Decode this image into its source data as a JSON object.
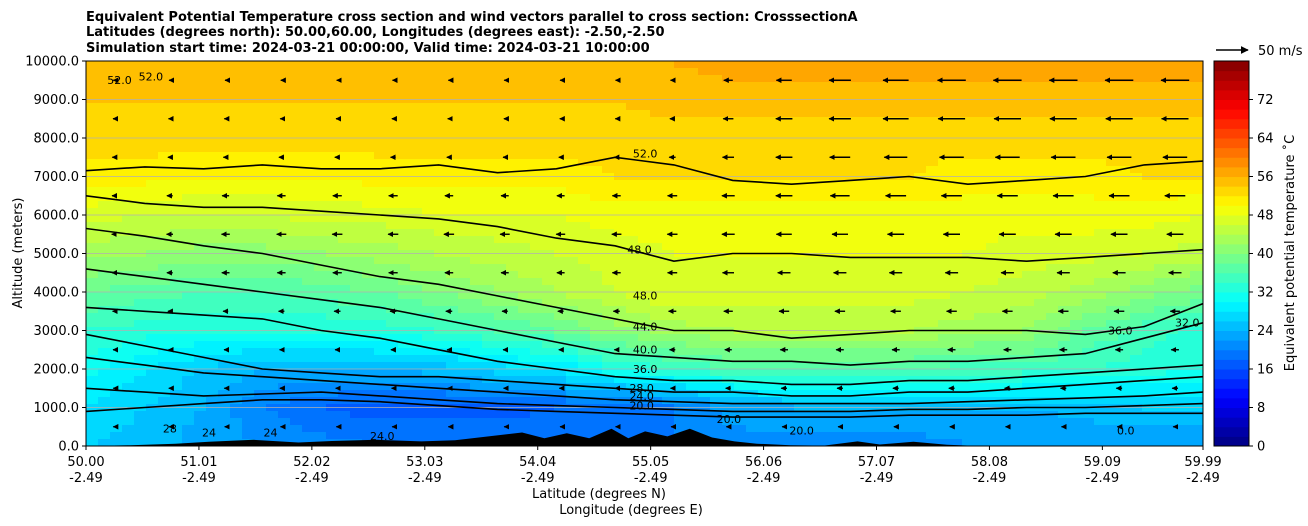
{
  "chart_data": {
    "type": "heatmap",
    "title_lines": [
      "Equivalent Potential Temperature cross section and wind vectors parallel to cross section: CrosssectionA",
      "Latitudes (degrees north): 50.00,60.00, Longitudes (degrees east): -2.50,-2.50",
      "Simulation start time: 2024-03-21 00:00:00, Valid time: 2024-03-21 10:00:00"
    ],
    "ylabel": "Altitude (meters)",
    "xlabel_lines": [
      "Latitude (degrees N)",
      "Longitude (degrees E)"
    ],
    "colorbar_label": "Equivalent potential temperature ˚C",
    "vector_key_label": "50 m/s",
    "ylim": [
      0,
      10000
    ],
    "xlim": [
      50.0,
      59.99
    ],
    "y_ticks": [
      "0.0",
      "1000.0",
      "2000.0",
      "3000.0",
      "4000.0",
      "5000.0",
      "6000.0",
      "7000.0",
      "8000.0",
      "9000.0",
      "10000.0"
    ],
    "x_ticks": [
      {
        "lat": "50.00",
        "lon": "-2.49"
      },
      {
        "lat": "51.01",
        "lon": "-2.49"
      },
      {
        "lat": "52.02",
        "lon": "-2.49"
      },
      {
        "lat": "53.03",
        "lon": "-2.49"
      },
      {
        "lat": "54.04",
        "lon": "-2.49"
      },
      {
        "lat": "55.05",
        "lon": "-2.49"
      },
      {
        "lat": "56.06",
        "lon": "-2.49"
      },
      {
        "lat": "57.07",
        "lon": "-2.49"
      },
      {
        "lat": "58.08",
        "lon": "-2.49"
      },
      {
        "lat": "59.09",
        "lon": "-2.49"
      },
      {
        "lat": "59.99",
        "lon": "-2.49"
      }
    ],
    "colorbar_range": [
      0,
      80
    ],
    "colorbar_ticks": [
      "0",
      "8",
      "16",
      "24",
      "32",
      "40",
      "48",
      "56",
      "64",
      "72"
    ],
    "grid": "horizontal",
    "contour_labels": [
      {
        "text": "52.0",
        "lat": 50.3,
        "alt": 9400
      },
      {
        "text": "52.0",
        "lat": 50.58,
        "alt": 9500
      },
      {
        "text": "52.0",
        "lat": 55.0,
        "alt": 7500
      },
      {
        "text": "48.0",
        "lat": 54.95,
        "alt": 5000
      },
      {
        "text": "48.0",
        "lat": 55.0,
        "alt": 3800
      },
      {
        "text": "44.0",
        "lat": 55.0,
        "alt": 3000
      },
      {
        "text": "40.0",
        "lat": 55.0,
        "alt": 2400
      },
      {
        "text": "36.0",
        "lat": 55.0,
        "alt": 1900
      },
      {
        "text": "28.0",
        "lat": 54.97,
        "alt": 1400
      },
      {
        "text": "24.0",
        "lat": 54.97,
        "alt": 1200
      },
      {
        "text": "20.0",
        "lat": 54.97,
        "alt": 950
      },
      {
        "text": "20.0",
        "lat": 55.75,
        "alt": 600
      },
      {
        "text": "20.0",
        "lat": 56.4,
        "alt": 300
      },
      {
        "text": "28",
        "lat": 50.75,
        "alt": 350
      },
      {
        "text": "24",
        "lat": 51.1,
        "alt": 250
      },
      {
        "text": "24",
        "lat": 51.65,
        "alt": 250
      },
      {
        "text": "24.0",
        "lat": 52.65,
        "alt": 150
      },
      {
        "text": "36.0",
        "lat": 59.25,
        "alt": 2900
      },
      {
        "text": "32.0",
        "lat": 59.85,
        "alt": 3100
      },
      {
        "text": "0.0",
        "lat": 59.3,
        "alt": 300
      }
    ],
    "contours": [
      {
        "level": 52,
        "alt": [
          7150,
          7250,
          7200,
          7300,
          7200,
          7200,
          7300,
          7100,
          7200,
          7500,
          7300,
          6900,
          6800,
          6900,
          7000,
          6800,
          6900,
          7000,
          7300,
          7400
        ]
      },
      {
        "level": 48,
        "alt": [
          6500,
          6300,
          6200,
          6200,
          6100,
          6000,
          5900,
          5700,
          5400,
          5200,
          4800,
          5000,
          5000,
          4900,
          4900,
          4900,
          4800,
          4900,
          5000,
          5100
        ]
      },
      {
        "level": 44,
        "alt": [
          5650,
          5450,
          5200,
          5000,
          4700,
          4400,
          4200,
          3900,
          3600,
          3300,
          3000,
          3000,
          2800,
          2900,
          3000,
          3000,
          3000,
          2900,
          3100,
          3700
        ]
      },
      {
        "level": 40,
        "alt": [
          4600,
          4400,
          4200,
          4000,
          3800,
          3600,
          3300,
          3000,
          2700,
          2400,
          2300,
          2200,
          2200,
          2100,
          2200,
          2200,
          2300,
          2400,
          2800,
          3200
        ]
      },
      {
        "level": 36,
        "alt": [
          3600,
          3500,
          3400,
          3300,
          3000,
          2800,
          2500,
          2200,
          2000,
          1800,
          1700,
          1700,
          1600,
          1600,
          1700,
          1700,
          1800,
          1900,
          2000,
          2100
        ]
      },
      {
        "level": 32,
        "alt": [
          2900,
          2600,
          2300,
          2000,
          1900,
          1800,
          1800,
          1700,
          1600,
          1500,
          1400,
          1400,
          1300,
          1300,
          1400,
          1400,
          1500,
          1600,
          1700,
          1800
        ]
      },
      {
        "level": 28,
        "alt": [
          2300,
          2100,
          1900,
          1800,
          1700,
          1600,
          1500,
          1400,
          1300,
          1200,
          1150,
          1100,
          1100,
          1100,
          1100,
          1150,
          1200,
          1250,
          1300,
          1400
        ]
      },
      {
        "level": 24,
        "alt": [
          1500,
          1400,
          1300,
          1350,
          1400,
          1300,
          1200,
          1100,
          1050,
          1000,
          950,
          900,
          900,
          900,
          950,
          950,
          1000,
          1000,
          1050,
          1100
        ]
      },
      {
        "level": 20,
        "alt": [
          900,
          1000,
          1100,
          1200,
          1200,
          1150,
          1050,
          950,
          900,
          850,
          800,
          750,
          750,
          750,
          800,
          800,
          800,
          850,
          850,
          850
        ]
      }
    ],
    "theta_field": {
      "cols": 20,
      "rows": 11,
      "note_rows": "altitude 0 to 10000 m in 1000 m steps",
      "values": [
        [
          26,
          25,
          23,
          22,
          21,
          20,
          20,
          20,
          20,
          20,
          20,
          21,
          21,
          21,
          21,
          22,
          22,
          22,
          22,
          22
        ],
        [
          28,
          26,
          24,
          20,
          18,
          17,
          17,
          17,
          18,
          18,
          20,
          23,
          24,
          24,
          24,
          24,
          24,
          25,
          26,
          26
        ],
        [
          31,
          28,
          26,
          24,
          24,
          24,
          25,
          27,
          28,
          32,
          34,
          36,
          36,
          36,
          36,
          35,
          35,
          34,
          33,
          32
        ],
        [
          34,
          33,
          32,
          32,
          32,
          33,
          34,
          36,
          38,
          41,
          43,
          44,
          44,
          44,
          44,
          43,
          42,
          38,
          35,
          33
        ],
        [
          38,
          37,
          36,
          36,
          37,
          38,
          40,
          42,
          44,
          46,
          48,
          47,
          47,
          47,
          47,
          46,
          45,
          43,
          41,
          39
        ],
        [
          43,
          42,
          41,
          41,
          42,
          43,
          44,
          45,
          46,
          47,
          48,
          48,
          48,
          48,
          48,
          48,
          47,
          47,
          46,
          45
        ],
        [
          47,
          46,
          46,
          46,
          47,
          47,
          48,
          48,
          48,
          49,
          49,
          49,
          49,
          49,
          49,
          49,
          49,
          49,
          49,
          48
        ],
        [
          51,
          51,
          50,
          50,
          50,
          51,
          51,
          51,
          51,
          52,
          52,
          52,
          52,
          52,
          52,
          51,
          51,
          51,
          52,
          52
        ],
        [
          53,
          53,
          53,
          53,
          53,
          53,
          53,
          53,
          53,
          53,
          53,
          53,
          53,
          53,
          53,
          53,
          53,
          53,
          53,
          53
        ],
        [
          54,
          54,
          54,
          54,
          54,
          54,
          54,
          54,
          54,
          54,
          55,
          55,
          55,
          55,
          55,
          55,
          55,
          55,
          55,
          55
        ],
        [
          54,
          54,
          54,
          54,
          54,
          54,
          54,
          54,
          54,
          54,
          56,
          57,
          57,
          57,
          57,
          57,
          57,
          57,
          57,
          57
        ]
      ]
    },
    "terrain": [
      {
        "lat": 50.0,
        "alt": 0
      },
      {
        "lat": 50.4,
        "alt": 20
      },
      {
        "lat": 50.8,
        "alt": 60
      },
      {
        "lat": 51.1,
        "alt": 110
      },
      {
        "lat": 51.5,
        "alt": 160
      },
      {
        "lat": 51.9,
        "alt": 90
      },
      {
        "lat": 52.2,
        "alt": 130
      },
      {
        "lat": 52.6,
        "alt": 160
      },
      {
        "lat": 53.0,
        "alt": 120
      },
      {
        "lat": 53.3,
        "alt": 150
      },
      {
        "lat": 53.6,
        "alt": 250
      },
      {
        "lat": 53.9,
        "alt": 350
      },
      {
        "lat": 54.1,
        "alt": 200
      },
      {
        "lat": 54.3,
        "alt": 330
      },
      {
        "lat": 54.5,
        "alt": 200
      },
      {
        "lat": 54.7,
        "alt": 450
      },
      {
        "lat": 54.85,
        "alt": 200
      },
      {
        "lat": 55.0,
        "alt": 380
      },
      {
        "lat": 55.2,
        "alt": 250
      },
      {
        "lat": 55.4,
        "alt": 450
      },
      {
        "lat": 55.6,
        "alt": 220
      },
      {
        "lat": 55.8,
        "alt": 120
      },
      {
        "lat": 56.0,
        "alt": 60
      },
      {
        "lat": 56.3,
        "alt": 20
      },
      {
        "lat": 56.6,
        "alt": 10
      },
      {
        "lat": 56.9,
        "alt": 120
      },
      {
        "lat": 57.1,
        "alt": 40
      },
      {
        "lat": 57.4,
        "alt": 110
      },
      {
        "lat": 57.7,
        "alt": 30
      },
      {
        "lat": 58.0,
        "alt": 0
      },
      {
        "lat": 59.99,
        "alt": 0
      }
    ],
    "wind_u": {
      "cols": 20,
      "rows": 10,
      "note_rows": "altitude 500 to 9500 m in 1000 m steps; m/s, negative = leftward",
      "values": [
        [
          -2,
          -2,
          -3,
          -3,
          -3,
          -3,
          -2,
          -2,
          -2,
          -3,
          -4,
          -6,
          -6,
          -6,
          -6,
          -6,
          -6,
          -6,
          -6,
          -6
        ],
        [
          -2,
          -3,
          -4,
          -5,
          -5,
          -5,
          -4,
          -4,
          -4,
          -5,
          -6,
          -8,
          -9,
          -9,
          -9,
          -9,
          -9,
          -9,
          -9,
          -9
        ],
        [
          -3,
          -4,
          -5,
          -6,
          -7,
          -7,
          -6,
          -6,
          -6,
          -7,
          -9,
          -11,
          -12,
          -12,
          -12,
          -12,
          -12,
          -12,
          -12,
          -12
        ],
        [
          -4,
          -6,
          -8,
          -9,
          -10,
          -10,
          -10,
          -9,
          -9,
          -10,
          -12,
          -14,
          -16,
          -16,
          -16,
          -16,
          -16,
          -16,
          -16,
          -15
        ],
        [
          -6,
          -9,
          -12,
          -13,
          -14,
          -14,
          -13,
          -12,
          -12,
          -13,
          -15,
          -18,
          -20,
          -20,
          -20,
          -20,
          -20,
          -20,
          -20,
          -20
        ],
        [
          -7,
          -10,
          -13,
          -15,
          -16,
          -16,
          -16,
          -15,
          -14,
          -15,
          -16,
          -20,
          -24,
          -25,
          -26,
          -26,
          -26,
          -26,
          -26,
          -26
        ],
        [
          -6,
          -9,
          -11,
          -13,
          -14,
          -14,
          -13,
          -12,
          -12,
          -13,
          -15,
          -20,
          -26,
          -30,
          -32,
          -32,
          -32,
          -32,
          -32,
          -32
        ],
        [
          -5,
          -6,
          -7,
          -8,
          -8,
          -8,
          -7,
          -6,
          -6,
          -7,
          -10,
          -18,
          -26,
          -32,
          -36,
          -38,
          -38,
          -38,
          -38,
          -38
        ],
        [
          -3,
          -4,
          -4,
          -4,
          -4,
          -4,
          -4,
          -3,
          -3,
          -4,
          -8,
          -16,
          -26,
          -34,
          -40,
          -42,
          -42,
          -42,
          -42,
          -42
        ],
        [
          -2,
          -2,
          -2,
          -2,
          -2,
          -2,
          -2,
          -2,
          -2,
          -3,
          -6,
          -14,
          -24,
          -34,
          -40,
          -44,
          -44,
          -44,
          -44,
          -44
        ]
      ]
    }
  }
}
